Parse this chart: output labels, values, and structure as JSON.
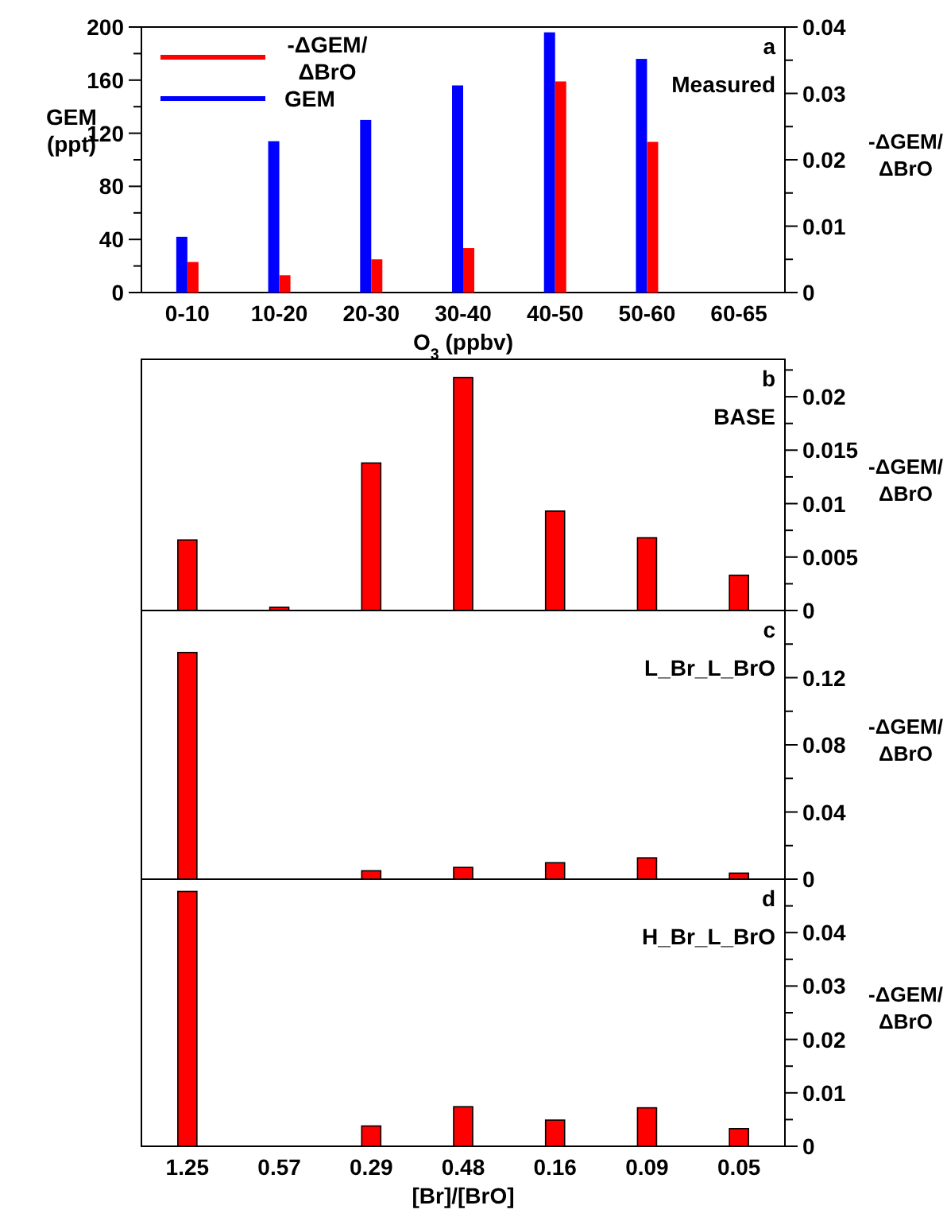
{
  "chart_data": [
    {
      "type": "bar",
      "categories": [
        "0-10",
        "10-20",
        "20-30",
        "30-40",
        "40-50",
        "50-60",
        "60-65"
      ],
      "xlabel": "O$_{3}$ (ppbv)",
      "ylabel": "GEM (ppt)",
      "y2label": "-ΔGEM/ΔBrO",
      "series": [
        {
          "name": "GEM",
          "color": "#0000ff",
          "values": [
            42,
            114,
            130,
            156,
            196,
            176,
            null
          ]
        },
        {
          "name": "-ΔGEM/ΔBrO",
          "color": "#ff0000",
          "axis": "y2",
          "values": [
            0.0046,
            0.0026,
            0.005,
            0.0067,
            0.0318,
            0.0227,
            null
          ]
        }
      ],
      "ylim": [
        0,
        200
      ],
      "yticks": [
        0,
        {
          "value": 20,
          "label": null
        },
        40,
        {
          "value": 60,
          "label": null
        },
        80,
        {
          "value": 100,
          "label": null
        },
        120,
        {
          "value": 140,
          "label": null
        },
        160,
        {
          "value": 180,
          "label": null
        },
        200
      ],
      "y2lim": [
        0,
        0.04
      ],
      "y2ticks": [
        0,
        {
          "value": 0.005,
          "label": null
        },
        0.01,
        {
          "value": 0.015,
          "label": null
        },
        0.02,
        {
          "value": 0.025,
          "label": null
        },
        0.03,
        {
          "value": 0.035,
          "label": null
        },
        0.04
      ],
      "legend": "top left",
      "annotations": [
        "a",
        "Measured"
      ]
    },
    {
      "type": "bar",
      "categories": [
        null,
        null,
        null,
        null,
        null,
        null,
        null
      ],
      "ylabel": "-ΔGEM/ΔBrO",
      "series": [
        {
          "color": "#ff0000",
          "values": [
            0.0066,
            0.0003,
            0.0138,
            0.0218,
            0.0093,
            0.0068,
            0.0033
          ]
        }
      ],
      "ylim": [
        0,
        0.0235
      ],
      "yticks": [
        0,
        {
          "value": 0.0025,
          "label": null
        },
        0.005,
        {
          "value": 0.0075,
          "label": null
        },
        0.01,
        {
          "value": 0.0125,
          "label": null
        },
        0.015,
        {
          "value": 0.0175,
          "label": null
        },
        0.02,
        {
          "value": 0.0225,
          "label": null
        }
      ],
      "annotations": [
        "b",
        "BASE"
      ]
    },
    {
      "type": "bar",
      "categories": [
        null,
        null,
        null,
        null,
        null,
        null,
        null
      ],
      "y2label": "-ΔGEM/ΔBrO",
      "series": [
        {
          "color": "#ff0000",
          "axis": "y2",
          "values": [
            0.135,
            null,
            0.005,
            0.007,
            0.0098,
            0.0127,
            0.0036
          ]
        }
      ],
      "y2lim": [
        0,
        0.16
      ],
      "y2ticks": [
        0,
        {
          "value": 0.02,
          "label": null
        },
        0.04,
        {
          "value": 0.06,
          "label": null
        },
        0.08,
        {
          "value": 0.1,
          "label": null
        },
        0.12,
        {
          "value": 0.14,
          "label": null
        }
      ],
      "annotations": [
        "c",
        "L_Br_L_BrO"
      ]
    },
    {
      "type": "bar",
      "categories": [
        "1.25",
        "0.57",
        "0.29",
        "0.48",
        "0.16",
        "0.09",
        "0.05"
      ],
      "xlabel": "[Br]/[BrO]",
      "y2label": "-ΔGEM/ΔBrO",
      "series": [
        {
          "color": "#ff0000",
          "axis": "y2",
          "values": [
            0.0477,
            null,
            0.0038,
            0.0074,
            0.0049,
            0.0072,
            0.0033
          ]
        }
      ],
      "y2lim": [
        0,
        0.05
      ],
      "y2ticks": [
        0,
        {
          "value": 0.005,
          "label": null
        },
        0.01,
        {
          "value": 0.015,
          "label": null
        },
        0.02,
        {
          "value": 0.025,
          "label": null
        },
        0.03,
        {
          "value": 0.035,
          "label": null
        },
        0.04,
        {
          "value": 0.045,
          "label": null
        }
      ],
      "annotations": [
        "d",
        "H_Br_L_BrO"
      ]
    }
  ]
}
